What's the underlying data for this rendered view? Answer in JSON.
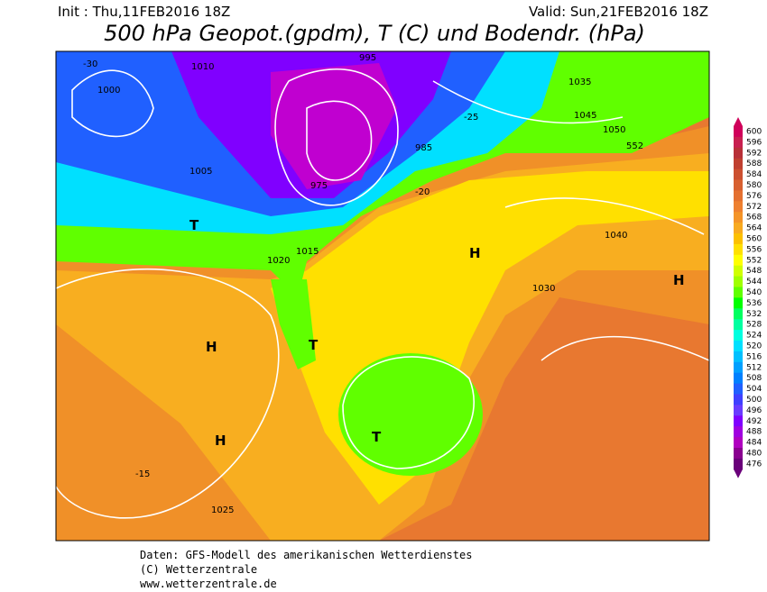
{
  "header": {
    "init": "Init : Thu,11FEB2016 18Z",
    "valid": "Valid: Sun,21FEB2016 18Z",
    "title": "500 hPa Geopot.(gpdm), T (C) und Bodendr. (hPa)"
  },
  "colorbar": {
    "values": [
      600,
      596,
      592,
      588,
      584,
      580,
      576,
      572,
      568,
      564,
      560,
      556,
      552,
      548,
      544,
      540,
      536,
      532,
      528,
      524,
      520,
      516,
      512,
      508,
      504,
      500,
      496,
      492,
      488,
      484,
      480,
      476
    ],
    "colors": [
      "#d0005a",
      "#c82050",
      "#b83038",
      "#c04030",
      "#cc5030",
      "#d86030",
      "#e47030",
      "#ee8030",
      "#f49428",
      "#f8aa20",
      "#fcc000",
      "#ffe000",
      "#ffff00",
      "#d0ff00",
      "#a0ff00",
      "#60ff00",
      "#00ff00",
      "#00ff60",
      "#00ffa0",
      "#00ffe0",
      "#00e0ff",
      "#00c0ff",
      "#00a0ff",
      "#0080ff",
      "#2060ff",
      "#4040ff",
      "#6a3cff",
      "#8000ff",
      "#a000e0",
      "#b000c0",
      "#8a0090",
      "#6a007a"
    ]
  },
  "map_labels": [
    "1000",
    "1005",
    "1010",
    "1015",
    "1020",
    "1025",
    "1030",
    "1035",
    "1045",
    "1050",
    "1040",
    "975",
    "985",
    "995",
    "-30",
    "-25",
    "-20",
    "-15",
    "552",
    "H",
    "T",
    "H",
    "T",
    "H",
    "T",
    "H"
  ],
  "footer": [
    "Daten: GFS-Modell des amerikanischen Wetterdienstes",
    "(C) Wetterzentrale",
    "www.wetterzentrale.de"
  ]
}
